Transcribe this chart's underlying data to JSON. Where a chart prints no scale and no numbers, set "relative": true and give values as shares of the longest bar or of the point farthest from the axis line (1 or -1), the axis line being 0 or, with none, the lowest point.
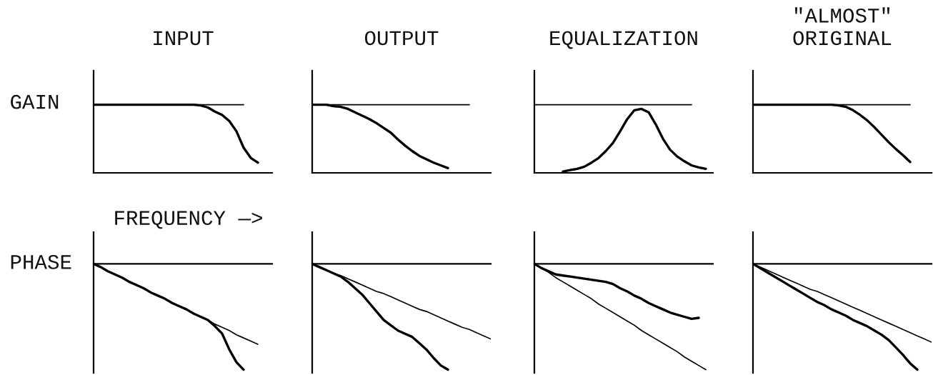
{
  "chart_data": [
    {
      "type": "line",
      "title": "INPUT",
      "ylabel": "GAIN",
      "relative": true,
      "tick_labels": false,
      "categories": [
        null,
        null,
        null,
        null,
        null,
        null,
        null,
        null,
        null,
        null,
        null,
        null,
        null,
        null,
        null,
        null,
        null,
        null,
        null,
        null,
        null,
        null,
        null,
        null,
        null,
        null
      ],
      "series": [
        {
          "color": "#000000",
          "values": [
            1,
            1,
            1,
            1,
            1,
            1,
            1,
            1,
            1,
            1,
            1,
            1,
            1,
            1,
            1,
            0.99,
            0.96,
            0.9,
            0.85,
            0.76,
            0.61,
            0.37,
            0.22,
            0.15,
            null,
            null
          ]
        },
        {
          "color": "#000000",
          "values": [
            1,
            1,
            1,
            1,
            1,
            1,
            1,
            1,
            1,
            1,
            1,
            1,
            1,
            1,
            1,
            1,
            1,
            1,
            1,
            1,
            1,
            1,
            null,
            null,
            null,
            null
          ]
        }
      ]
    },
    {
      "type": "line",
      "title": "OUTPUT",
      "relative": true,
      "tick_labels": false,
      "categories": [
        null,
        null,
        null,
        null,
        null,
        null,
        null,
        null,
        null,
        null,
        null,
        null,
        null,
        null,
        null,
        null,
        null,
        null,
        null,
        null,
        null,
        null,
        null,
        null,
        null,
        null
      ],
      "series": [
        {
          "color": "#000000",
          "values": [
            1,
            1,
            1,
            0.98,
            0.97,
            0.94,
            0.89,
            0.84,
            0.79,
            0.73,
            0.66,
            0.59,
            0.49,
            0.4,
            0.32,
            0.25,
            0.2,
            0.15,
            0.11,
            0.07,
            null,
            null,
            null,
            null,
            null,
            null
          ]
        },
        {
          "color": "#000000",
          "values": [
            1,
            1,
            1,
            1,
            1,
            1,
            1,
            1,
            1,
            1,
            1,
            1,
            1,
            1,
            1,
            1,
            1,
            1,
            1,
            1,
            1,
            1,
            1,
            null,
            null,
            null
          ]
        }
      ]
    },
    {
      "type": "line",
      "title": "EQUALIZATION",
      "relative": true,
      "tick_labels": false,
      "categories": [
        null,
        null,
        null,
        null,
        null,
        null,
        null,
        null,
        null,
        null,
        null,
        null,
        null,
        null,
        null,
        null,
        null,
        null,
        null,
        null,
        null,
        null,
        null,
        null,
        null,
        null
      ],
      "series": [
        {
          "color": "#000000",
          "values": [
            null,
            null,
            null,
            null,
            0.02,
            0.04,
            0.06,
            0.09,
            0.15,
            0.22,
            0.32,
            0.44,
            0.61,
            0.79,
            0.92,
            0.94,
            0.89,
            0.71,
            0.5,
            0.34,
            0.24,
            0.17,
            0.11,
            0.08,
            0.06,
            null
          ]
        },
        {
          "color": "#000000",
          "values": [
            1,
            1,
            1,
            1,
            1,
            1,
            1,
            1,
            1,
            1,
            1,
            1,
            1,
            1,
            1,
            1,
            1,
            1,
            1,
            1,
            1,
            1,
            1,
            null,
            null,
            null
          ]
        }
      ]
    },
    {
      "type": "line",
      "title": "\"ALMOST\"\nORIGINAL",
      "relative": true,
      "tick_labels": false,
      "categories": [
        null,
        null,
        null,
        null,
        null,
        null,
        null,
        null,
        null,
        null,
        null,
        null,
        null,
        null,
        null,
        null,
        null,
        null,
        null,
        null,
        null,
        null,
        null,
        null,
        null,
        null
      ],
      "series": [
        {
          "color": "#000000",
          "values": [
            1,
            1,
            1,
            1,
            1,
            1,
            1,
            1,
            1,
            1,
            1,
            1,
            0.99,
            0.97,
            0.92,
            0.85,
            0.77,
            0.67,
            0.56,
            0.45,
            0.35,
            0.26,
            0.16,
            null,
            null,
            null
          ]
        },
        {
          "color": "#000000",
          "values": [
            1,
            1,
            1,
            1,
            1,
            1,
            1,
            1,
            1,
            1,
            1,
            1,
            1,
            1,
            1,
            1,
            1,
            1,
            1,
            1,
            1,
            1,
            1,
            null,
            null,
            null
          ]
        }
      ]
    },
    {
      "type": "line",
      "ylabel": "PHASE",
      "xlabel": "FREQUENCY —>",
      "relative": true,
      "tick_labels": false,
      "categories": [
        null,
        null,
        null,
        null,
        null,
        null,
        null,
        null,
        null,
        null,
        null,
        null,
        null,
        null,
        null,
        null,
        null,
        null,
        null,
        null,
        null,
        null,
        null,
        null,
        null,
        null
      ],
      "series": [
        {
          "color": "#000000",
          "values": [
            0,
            -0.03,
            -0.07,
            -0.1,
            -0.13,
            -0.17,
            -0.2,
            -0.23,
            -0.27,
            -0.3,
            -0.33,
            -0.37,
            -0.4,
            -0.43,
            -0.47,
            -0.5,
            -0.53,
            -0.59,
            -0.66,
            -0.81,
            -0.93,
            -1.0,
            null,
            null,
            null,
            null
          ]
        },
        {
          "color": "#000000",
          "values": [
            0,
            -0.03,
            -0.07,
            -0.1,
            -0.13,
            -0.17,
            -0.2,
            -0.23,
            -0.27,
            -0.3,
            -0.33,
            -0.37,
            -0.4,
            -0.43,
            -0.47,
            -0.5,
            -0.53,
            -0.57,
            -0.6,
            -0.63,
            -0.67,
            -0.7,
            -0.73,
            -0.76,
            null,
            null
          ]
        }
      ]
    },
    {
      "type": "line",
      "relative": true,
      "tick_labels": false,
      "categories": [
        null,
        null,
        null,
        null,
        null,
        null,
        null,
        null,
        null,
        null,
        null,
        null,
        null,
        null,
        null,
        null,
        null,
        null,
        null,
        null,
        null,
        null,
        null,
        null,
        null,
        null
      ],
      "series": [
        {
          "color": "#000000",
          "values": [
            0,
            -0.03,
            -0.06,
            -0.09,
            -0.12,
            -0.17,
            -0.23,
            -0.29,
            -0.37,
            -0.45,
            -0.53,
            -0.58,
            -0.63,
            -0.66,
            -0.69,
            -0.75,
            -0.81,
            -0.89,
            -0.96,
            -1.0,
            null,
            null,
            null,
            null,
            null,
            null
          ]
        },
        {
          "color": "#000000",
          "values": [
            0,
            -0.03,
            -0.06,
            -0.09,
            -0.11,
            -0.14,
            -0.17,
            -0.2,
            -0.23,
            -0.26,
            -0.28,
            -0.31,
            -0.34,
            -0.37,
            -0.4,
            -0.43,
            -0.45,
            -0.48,
            -0.51,
            -0.54,
            -0.57,
            -0.6,
            -0.62,
            -0.65,
            -0.68,
            -0.71
          ]
        }
      ]
    },
    {
      "type": "line",
      "relative": true,
      "tick_labels": false,
      "categories": [
        null,
        null,
        null,
        null,
        null,
        null,
        null,
        null,
        null,
        null,
        null,
        null,
        null,
        null,
        null,
        null,
        null,
        null,
        null,
        null,
        null,
        null,
        null,
        null,
        null,
        null
      ],
      "series": [
        {
          "color": "#000000",
          "values": [
            0,
            -0.04,
            -0.07,
            -0.1,
            -0.11,
            -0.12,
            -0.13,
            -0.14,
            -0.15,
            -0.16,
            -0.17,
            -0.19,
            -0.23,
            -0.26,
            -0.3,
            -0.33,
            -0.37,
            -0.4,
            -0.43,
            -0.46,
            -0.48,
            -0.5,
            -0.52,
            -0.51,
            null,
            null
          ]
        },
        {
          "color": "#000000",
          "values": [
            0,
            -0.04,
            -0.08,
            -0.13,
            -0.17,
            -0.21,
            -0.25,
            -0.29,
            -0.33,
            -0.38,
            -0.42,
            -0.46,
            -0.5,
            -0.54,
            -0.58,
            -0.63,
            -0.67,
            -0.71,
            -0.75,
            -0.79,
            -0.83,
            -0.88,
            -0.92,
            -0.96,
            -1.0,
            null
          ]
        }
      ]
    },
    {
      "type": "line",
      "relative": true,
      "tick_labels": false,
      "categories": [
        null,
        null,
        null,
        null,
        null,
        null,
        null,
        null,
        null,
        null,
        null,
        null,
        null,
        null,
        null,
        null,
        null,
        null,
        null,
        null,
        null,
        null,
        null,
        null,
        null,
        null
      ],
      "series": [
        {
          "color": "#000000",
          "values": [
            0,
            -0.04,
            -0.08,
            -0.12,
            -0.16,
            -0.2,
            -0.24,
            -0.28,
            -0.32,
            -0.36,
            -0.39,
            -0.43,
            -0.46,
            -0.49,
            -0.53,
            -0.56,
            -0.59,
            -0.63,
            -0.67,
            -0.72,
            -0.79,
            -0.86,
            -0.94,
            -1.0,
            null,
            null
          ]
        },
        {
          "color": "#000000",
          "values": [
            0,
            -0.03,
            -0.06,
            -0.09,
            -0.12,
            -0.15,
            -0.18,
            -0.21,
            -0.24,
            -0.26,
            -0.29,
            -0.32,
            -0.35,
            -0.38,
            -0.41,
            -0.44,
            -0.47,
            -0.5,
            -0.53,
            -0.56,
            -0.59,
            -0.62,
            -0.65,
            -0.68,
            -0.71,
            -0.74
          ]
        }
      ]
    }
  ]
}
